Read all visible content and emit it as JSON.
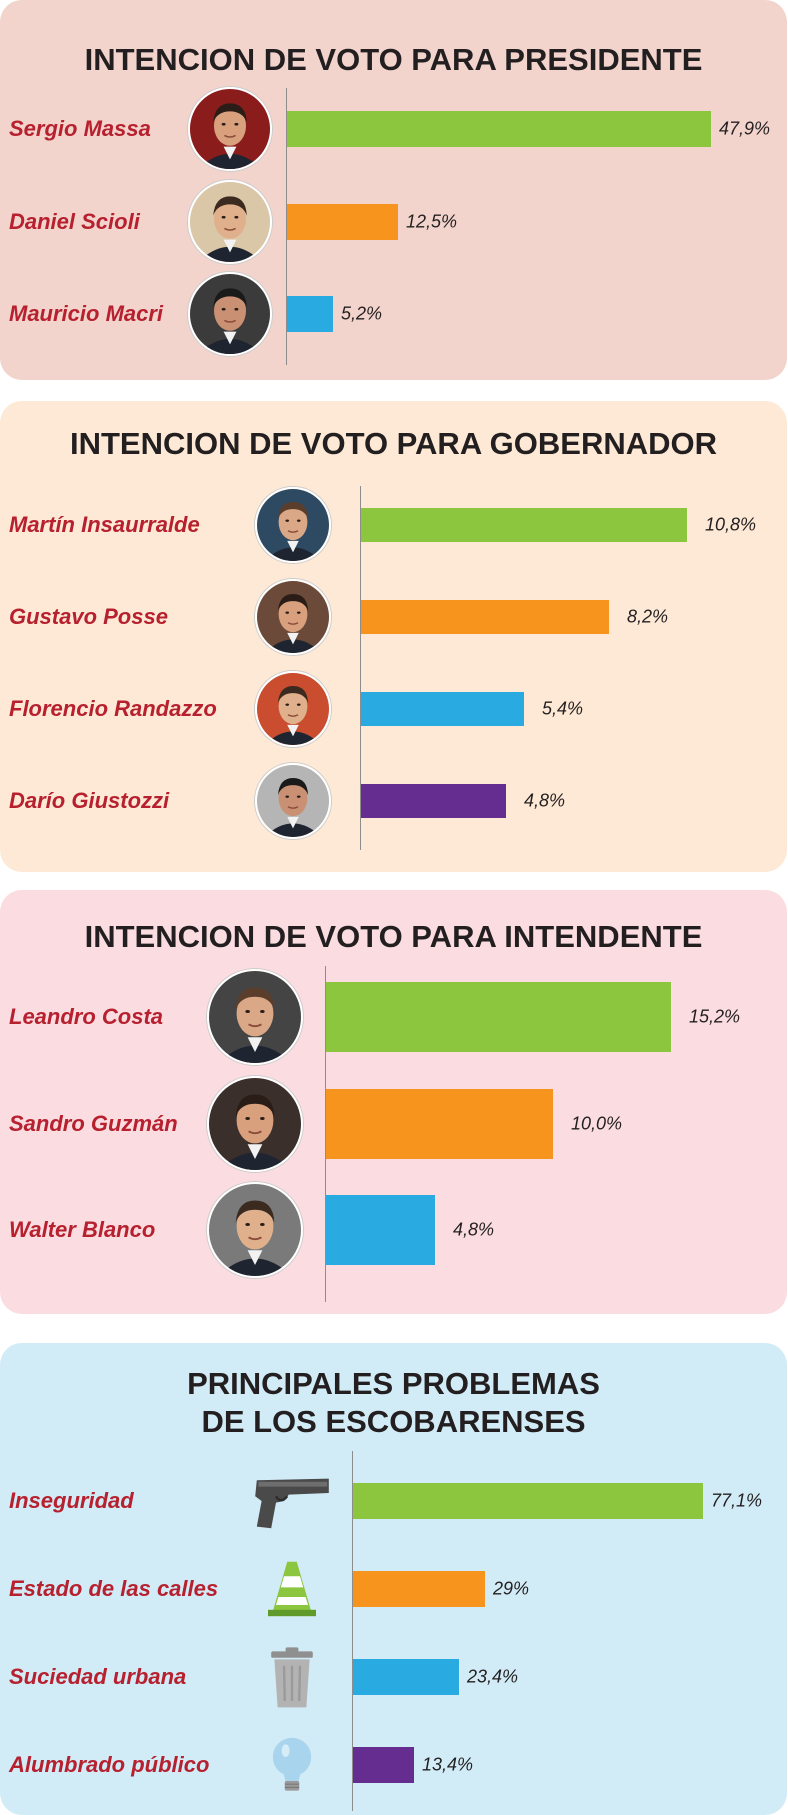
{
  "colors": {
    "green": "#8cc63f",
    "orange": "#f7941d",
    "blue": "#29abe2",
    "purple": "#662d91",
    "name_red": "#b7202e"
  },
  "chart_data": [
    {
      "type": "bar",
      "orientation": "horizontal",
      "title": "INTENCION DE VOTO PARA PRESIDENTE",
      "categories": [
        "Sergio Massa",
        "Daniel Scioli",
        "Mauricio Macri"
      ],
      "values": [
        47.9,
        12.5,
        5.2
      ],
      "value_labels": [
        "47,9%",
        "12,5%",
        "5,2%"
      ],
      "bar_colors": [
        "#8cc63f",
        "#f7941d",
        "#29abe2"
      ],
      "icons": [
        "portrait-photo",
        "portrait-photo",
        "portrait-photo"
      ],
      "unit": "%"
    },
    {
      "type": "bar",
      "orientation": "horizontal",
      "title": "INTENCION DE VOTO PARA GOBERNADOR",
      "categories": [
        "Martín Insaurralde",
        "Gustavo Posse",
        "Florencio Randazzo",
        "Darío Giustozzi"
      ],
      "values": [
        10.8,
        8.2,
        5.4,
        4.8
      ],
      "value_labels": [
        "10,8%",
        "8,2%",
        "5,4%",
        "4,8%"
      ],
      "bar_colors": [
        "#8cc63f",
        "#f7941d",
        "#29abe2",
        "#662d91"
      ],
      "icons": [
        "portrait-photo",
        "portrait-photo",
        "portrait-photo",
        "portrait-photo"
      ],
      "unit": "%"
    },
    {
      "type": "bar",
      "orientation": "horizontal",
      "title": "INTENCION DE VOTO PARA INTENDENTE",
      "categories": [
        "Leandro Costa",
        "Sandro Guzmán",
        "Walter Blanco"
      ],
      "values": [
        15.2,
        10.0,
        4.8
      ],
      "value_labels": [
        "15,2%",
        "10,0%",
        "4,8%"
      ],
      "bar_colors": [
        "#8cc63f",
        "#f7941d",
        "#29abe2"
      ],
      "icons": [
        "portrait-photo",
        "portrait-photo",
        "portrait-photo"
      ],
      "unit": "%"
    },
    {
      "type": "bar",
      "orientation": "horizontal",
      "title": "PRINCIPALES PROBLEMAS DE LOS ESCOBARENSES",
      "title_lines": [
        "PRINCIPALES PROBLEMAS",
        "DE LOS ESCOBARENSES"
      ],
      "categories": [
        "Inseguridad",
        "Estado de las calles",
        "Suciedad urbana",
        "Alumbrado público"
      ],
      "values": [
        77.1,
        29,
        23.4,
        13.4
      ],
      "value_labels": [
        "77,1%",
        "29%",
        "23,4%",
        "13,4%"
      ],
      "bar_colors": [
        "#8cc63f",
        "#f7941d",
        "#29abe2",
        "#662d91"
      ],
      "icons": [
        "pistol-icon",
        "traffic-cone-icon",
        "trash-can-icon",
        "light-bulb-icon"
      ],
      "unit": "%"
    }
  ]
}
